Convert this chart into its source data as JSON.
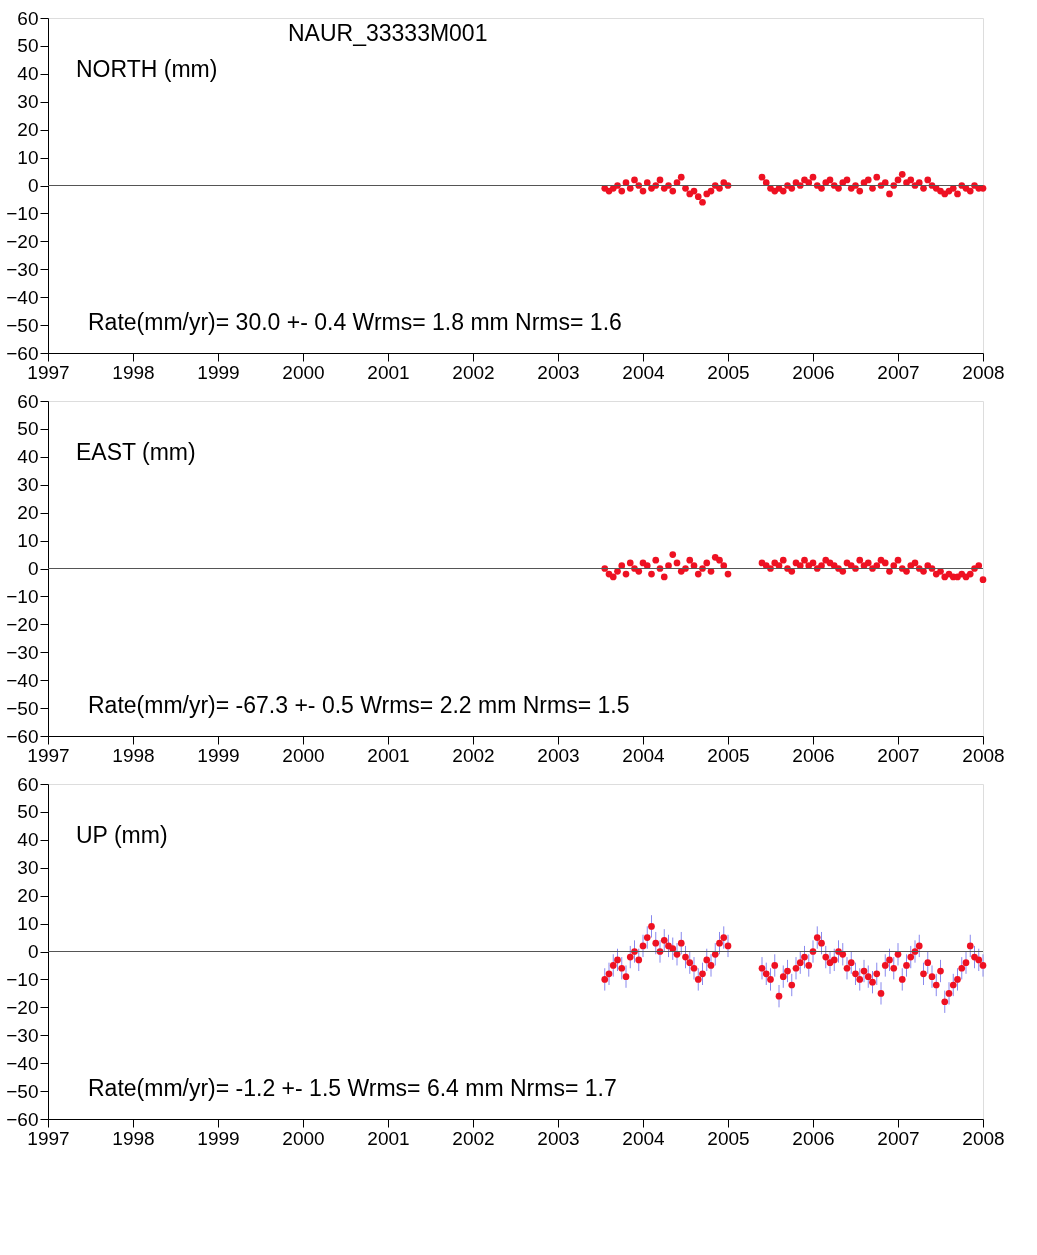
{
  "chart_data": [
    {
      "type": "scatter",
      "title": "NAUR_33333M001",
      "ylabel": "NORTH (mm)",
      "marker": "circle",
      "grid": false,
      "x": [
        2003.55,
        2003.6,
        2003.65,
        2003.7,
        2003.75,
        2003.8,
        2003.85,
        2003.9,
        2003.95,
        2004.0,
        2004.05,
        2004.1,
        2004.15,
        2004.2,
        2004.25,
        2004.3,
        2004.35,
        2004.4,
        2004.45,
        2004.5,
        2004.55,
        2004.6,
        2004.65,
        2004.7,
        2004.75,
        2004.8,
        2004.85,
        2004.9,
        2004.95,
        2005.0,
        2005.4,
        2005.45,
        2005.5,
        2005.55,
        2005.6,
        2005.65,
        2005.7,
        2005.75,
        2005.8,
        2005.85,
        2005.9,
        2005.95,
        2006.0,
        2006.05,
        2006.1,
        2006.15,
        2006.2,
        2006.25,
        2006.3,
        2006.35,
        2006.4,
        2006.45,
        2006.5,
        2006.55,
        2006.6,
        2006.65,
        2006.7,
        2006.75,
        2006.8,
        2006.85,
        2006.9,
        2006.95,
        2007.0,
        2007.05,
        2007.1,
        2007.15,
        2007.2,
        2007.25,
        2007.3,
        2007.35,
        2007.4,
        2007.45,
        2007.5,
        2007.55,
        2007.6,
        2007.65,
        2007.7,
        2007.75,
        2007.8,
        2007.85,
        2007.9,
        2007.95,
        2008.0
      ],
      "series": [
        {
          "color": "#ee1122",
          "values": [
            -1,
            -2,
            -1,
            0,
            -2,
            1,
            -1,
            2,
            0,
            -2,
            1,
            -1,
            0,
            2,
            -1,
            0,
            -2,
            1,
            3,
            -1,
            -3,
            -2,
            -4,
            -6,
            -3,
            -2,
            0,
            -1,
            1,
            0,
            3,
            1,
            -1,
            -2,
            -1,
            -2,
            0,
            -1,
            1,
            0,
            2,
            1,
            3,
            0,
            -1,
            1,
            2,
            0,
            -1,
            1,
            2,
            -1,
            0,
            -2,
            1,
            2,
            -1,
            3,
            0,
            1,
            -3,
            0,
            2,
            4,
            1,
            2,
            0,
            1,
            -1,
            2,
            0,
            -1,
            -2,
            -3,
            -2,
            -1,
            -3,
            0,
            -1,
            -2,
            0,
            -1,
            -1
          ]
        }
      ],
      "xlim": [
        1997,
        2008
      ],
      "ylim": [
        -60,
        60
      ],
      "xticks": [
        1997,
        1998,
        1999,
        2000,
        2001,
        2002,
        2003,
        2004,
        2005,
        2006,
        2007,
        2008
      ],
      "yticks": [
        -60,
        -50,
        -40,
        -30,
        -20,
        -10,
        0,
        10,
        20,
        30,
        40,
        50,
        60
      ],
      "ref_lines": [
        {
          "axis": "y",
          "value": 0,
          "color": "#555555"
        }
      ],
      "annotations": [
        "Rate(mm/yr)=   30.0  +-   0.4  Wrms=   1.8 mm  Nrms=   1.6"
      ]
    },
    {
      "type": "scatter",
      "ylabel": "EAST (mm)",
      "marker": "circle",
      "grid": false,
      "x": [
        2003.55,
        2003.6,
        2003.65,
        2003.7,
        2003.75,
        2003.8,
        2003.85,
        2003.9,
        2003.95,
        2004.0,
        2004.05,
        2004.1,
        2004.15,
        2004.2,
        2004.25,
        2004.3,
        2004.35,
        2004.4,
        2004.45,
        2004.5,
        2004.55,
        2004.6,
        2004.65,
        2004.7,
        2004.75,
        2004.8,
        2004.85,
        2004.9,
        2004.95,
        2005.0,
        2005.4,
        2005.45,
        2005.5,
        2005.55,
        2005.6,
        2005.65,
        2005.7,
        2005.75,
        2005.8,
        2005.85,
        2005.9,
        2005.95,
        2006.0,
        2006.05,
        2006.1,
        2006.15,
        2006.2,
        2006.25,
        2006.3,
        2006.35,
        2006.4,
        2006.45,
        2006.5,
        2006.55,
        2006.6,
        2006.65,
        2006.7,
        2006.75,
        2006.8,
        2006.85,
        2006.9,
        2006.95,
        2007.0,
        2007.05,
        2007.1,
        2007.15,
        2007.2,
        2007.25,
        2007.3,
        2007.35,
        2007.4,
        2007.45,
        2007.5,
        2007.55,
        2007.6,
        2007.65,
        2007.7,
        2007.75,
        2007.8,
        2007.85,
        2007.9,
        2007.95,
        2008.0
      ],
      "series": [
        {
          "color": "#ee1122",
          "values": [
            0,
            -2,
            -3,
            -1,
            1,
            -2,
            2,
            0,
            -1,
            2,
            1,
            -2,
            3,
            0,
            -3,
            1,
            5,
            2,
            -1,
            0,
            3,
            1,
            -2,
            0,
            2,
            -1,
            4,
            3,
            1,
            -2,
            2,
            1,
            0,
            2,
            1,
            3,
            0,
            -1,
            2,
            1,
            3,
            1,
            2,
            0,
            1,
            3,
            2,
            1,
            0,
            -1,
            2,
            1,
            0,
            3,
            1,
            2,
            0,
            1,
            3,
            2,
            -1,
            1,
            3,
            0,
            -1,
            1,
            2,
            0,
            -1,
            1,
            0,
            -2,
            -1,
            -3,
            -2,
            -3,
            -3,
            -2,
            -3,
            -2,
            0,
            1,
            -4
          ]
        }
      ],
      "xlim": [
        1997,
        2008
      ],
      "ylim": [
        -60,
        60
      ],
      "xticks": [
        1997,
        1998,
        1999,
        2000,
        2001,
        2002,
        2003,
        2004,
        2005,
        2006,
        2007,
        2008
      ],
      "yticks": [
        -60,
        -50,
        -40,
        -30,
        -20,
        -10,
        0,
        10,
        20,
        30,
        40,
        50,
        60
      ],
      "ref_lines": [
        {
          "axis": "y",
          "value": 0,
          "color": "#555555"
        }
      ],
      "annotations": [
        "Rate(mm/yr)=  -67.3  +-   0.5  Wrms=   2.2 mm  Nrms=   1.5"
      ]
    },
    {
      "type": "scatter",
      "ylabel": "UP (mm)",
      "marker": "circle",
      "grid": false,
      "x": [
        2003.55,
        2003.6,
        2003.65,
        2003.7,
        2003.75,
        2003.8,
        2003.85,
        2003.9,
        2003.95,
        2004.0,
        2004.05,
        2004.1,
        2004.15,
        2004.2,
        2004.25,
        2004.3,
        2004.35,
        2004.4,
        2004.45,
        2004.5,
        2004.55,
        2004.6,
        2004.65,
        2004.7,
        2004.75,
        2004.8,
        2004.85,
        2004.9,
        2004.95,
        2005.0,
        2005.4,
        2005.45,
        2005.5,
        2005.55,
        2005.6,
        2005.65,
        2005.7,
        2005.75,
        2005.8,
        2005.85,
        2005.9,
        2005.95,
        2006.0,
        2006.05,
        2006.1,
        2006.15,
        2006.2,
        2006.25,
        2006.3,
        2006.35,
        2006.4,
        2006.45,
        2006.5,
        2006.55,
        2006.6,
        2006.65,
        2006.7,
        2006.75,
        2006.8,
        2006.85,
        2006.9,
        2006.95,
        2007.0,
        2007.05,
        2007.1,
        2007.15,
        2007.2,
        2007.25,
        2007.3,
        2007.35,
        2007.4,
        2007.45,
        2007.5,
        2007.55,
        2007.6,
        2007.65,
        2007.7,
        2007.75,
        2007.8,
        2007.85,
        2007.9,
        2007.95,
        2008.0
      ],
      "series": [
        {
          "color": "#ee1122",
          "values": [
            -10,
            -8,
            -5,
            -3,
            -6,
            -9,
            -2,
            0,
            -3,
            2,
            5,
            9,
            3,
            0,
            4,
            2,
            1,
            -1,
            3,
            -2,
            -4,
            -6,
            -10,
            -8,
            -3,
            -5,
            -1,
            3,
            5,
            2,
            -6,
            -8,
            -10,
            -5,
            -16,
            -9,
            -7,
            -12,
            -6,
            -4,
            -2,
            -5,
            0,
            5,
            3,
            -2,
            -4,
            -3,
            0,
            -1,
            -6,
            -4,
            -8,
            -10,
            -7,
            -9,
            -11,
            -8,
            -15,
            -5,
            -3,
            -6,
            -1,
            -10,
            -5,
            -2,
            0,
            2,
            -8,
            -4,
            -9,
            -12,
            -7,
            -18,
            -15,
            -12,
            -10,
            -6,
            -4,
            2,
            -2,
            -3,
            -5
          ],
          "errors": [
            4,
            4,
            4,
            4,
            4,
            4,
            4,
            4,
            4,
            4,
            4,
            4,
            4,
            4,
            4,
            4,
            4,
            4,
            4,
            4,
            4,
            4,
            4,
            4,
            4,
            4,
            4,
            4,
            4,
            4,
            4,
            4,
            4,
            4,
            4,
            4,
            4,
            4,
            4,
            4,
            4,
            4,
            4,
            4,
            4,
            4,
            4,
            4,
            4,
            4,
            4,
            4,
            4,
            4,
            4,
            4,
            4,
            4,
            4,
            4,
            4,
            4,
            4,
            4,
            4,
            4,
            4,
            4,
            4,
            4,
            4,
            4,
            4,
            4,
            4,
            4,
            4,
            4,
            4,
            4,
            4,
            4,
            4
          ]
        }
      ],
      "xlim": [
        1997,
        2008
      ],
      "ylim": [
        -60,
        60
      ],
      "xticks": [
        1997,
        1998,
        1999,
        2000,
        2001,
        2002,
        2003,
        2004,
        2005,
        2006,
        2007,
        2008
      ],
      "yticks": [
        -60,
        -50,
        -40,
        -30,
        -20,
        -10,
        0,
        10,
        20,
        30,
        40,
        50,
        60
      ],
      "ref_lines": [
        {
          "axis": "y",
          "value": 0,
          "color": "#555555"
        }
      ],
      "annotations": [
        "Rate(mm/yr)=   -1.2  +-   1.5  Wrms=   6.4 mm  Nrms=   1.7"
      ]
    }
  ]
}
